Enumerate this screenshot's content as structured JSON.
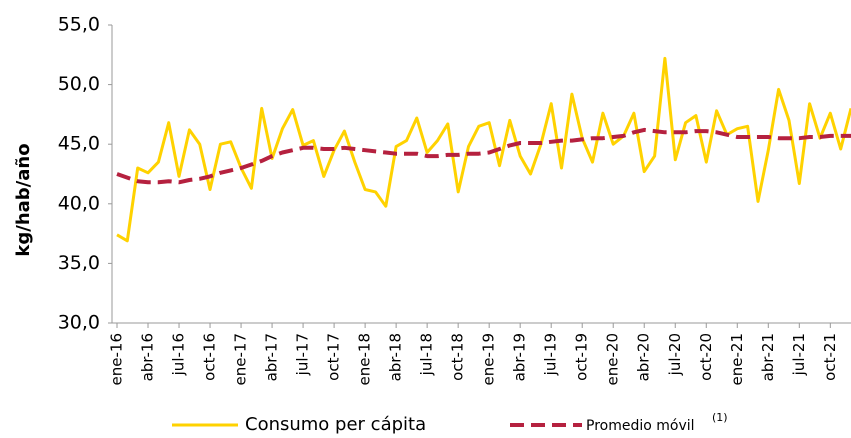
{
  "chart_data": {
    "type": "line",
    "y_label": "kg/hab/año",
    "categories": [
      "ene-16",
      null,
      null,
      "abr-16",
      null,
      null,
      "jul-16",
      null,
      null,
      "oct-16",
      null,
      null,
      "ene-17",
      null,
      null,
      "abr-17",
      null,
      null,
      "jul-17",
      null,
      null,
      "oct-17",
      null,
      null,
      "ene-18",
      null,
      null,
      "abr-18",
      null,
      null,
      "jul-18",
      null,
      null,
      "oct-18",
      null,
      null,
      "ene-19",
      null,
      null,
      "abr-19",
      null,
      null,
      "jul-19",
      null,
      null,
      "oct-19",
      null,
      null,
      "ene-20",
      null,
      null,
      "abr-20",
      null,
      null,
      "jul-20",
      null,
      null,
      "oct-20",
      null,
      null,
      "ene-21",
      null,
      null,
      "abr-21",
      null,
      null,
      "jul-21",
      null,
      null,
      "oct-21",
      null,
      null
    ],
    "series": [
      {
        "name": "Consumo per cápita",
        "color": "#ffd200",
        "style": "solid",
        "values": [
          37.4,
          36.9,
          43.0,
          42.6,
          43.5,
          46.8,
          42.3,
          46.2,
          45.0,
          41.2,
          45.0,
          45.2,
          43.0,
          41.3,
          48.0,
          43.8,
          46.3,
          47.9,
          44.9,
          45.3,
          42.3,
          44.5,
          46.1,
          43.5,
          41.2,
          41.0,
          39.8,
          44.8,
          45.3,
          47.2,
          44.3,
          45.3,
          46.7,
          41.0,
          44.8,
          46.5,
          46.8,
          43.2,
          47.0,
          44.0,
          42.5,
          45.0,
          48.4,
          43.0,
          49.2,
          45.5,
          43.5,
          47.6,
          45.0,
          45.7,
          47.6,
          42.7,
          44.0,
          52.2,
          43.7,
          46.8,
          47.4,
          43.5,
          47.8,
          45.8,
          46.3,
          46.5,
          40.2,
          44.5,
          49.6,
          47.0,
          41.7,
          48.4,
          45.5,
          47.6,
          44.6,
          48.0
        ]
      },
      {
        "name": "Promedio móvil",
        "color": "#b5213f",
        "style": "dashed",
        "values": [
          42.5,
          42.2,
          41.9,
          41.8,
          41.8,
          41.9,
          41.8,
          42.0,
          42.1,
          42.3,
          42.6,
          42.8,
          43.0,
          43.3,
          43.6,
          44.0,
          44.3,
          44.5,
          44.7,
          44.7,
          44.6,
          44.6,
          44.7,
          44.6,
          44.5,
          44.4,
          44.3,
          44.2,
          44.2,
          44.2,
          44.0,
          44.0,
          44.1,
          44.1,
          44.2,
          44.2,
          44.3,
          44.6,
          44.9,
          45.1,
          45.1,
          45.1,
          45.2,
          45.3,
          45.3,
          45.4,
          45.5,
          45.5,
          45.6,
          45.7,
          46.0,
          46.2,
          46.1,
          46.0,
          46.0,
          46.0,
          46.1,
          46.1,
          46.0,
          45.8,
          45.6,
          45.6,
          45.6,
          45.6,
          45.5,
          45.5,
          45.5,
          45.6,
          45.6,
          45.7,
          45.7,
          45.7
        ]
      }
    ],
    "legend_note": "(1)",
    "ylim": [
      30,
      55
    ],
    "yticks": [
      {
        "value": 30,
        "label": "30,0"
      },
      {
        "value": 35,
        "label": "35,0"
      },
      {
        "value": 40,
        "label": "40,0"
      },
      {
        "value": 45,
        "label": "45,0"
      },
      {
        "value": 50,
        "label": "50,0"
      },
      {
        "value": 55,
        "label": "55,0"
      }
    ],
    "grid": false
  }
}
